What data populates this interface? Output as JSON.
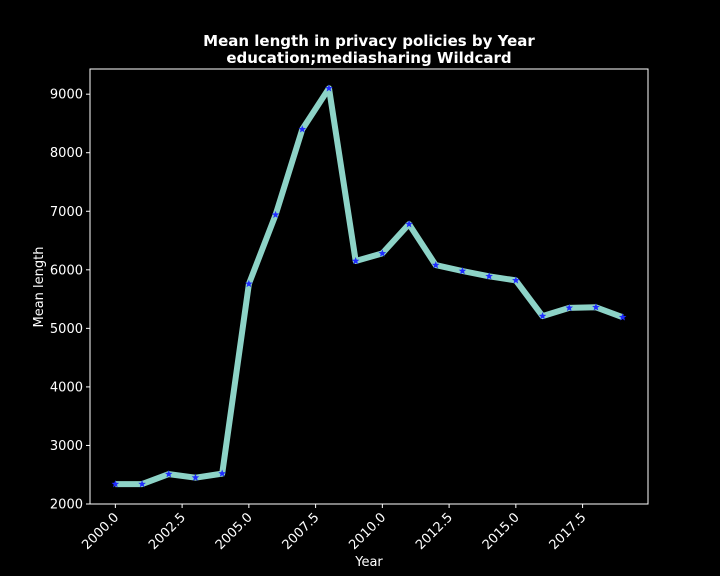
{
  "chart_data": {
    "type": "line",
    "title_line1": "Mean length in privacy policies by Year",
    "title_line2": "education;mediasharing Wildcard",
    "xlabel": "Year",
    "ylabel": "Mean length",
    "xlim": [
      1999.05,
      2019.95
    ],
    "ylim": [
      2000,
      9430
    ],
    "xticks": [
      2000.0,
      2002.5,
      2005.0,
      2007.5,
      2010.0,
      2012.5,
      2015.0,
      2017.5
    ],
    "xtick_labels": [
      "2000.0",
      "2002.5",
      "2005.0",
      "2007.5",
      "2010.0",
      "2012.5",
      "2015.0",
      "2017.5"
    ],
    "yticks": [
      2000,
      3000,
      4000,
      5000,
      6000,
      7000,
      8000,
      9000
    ],
    "ytick_labels": [
      "2000",
      "3000",
      "4000",
      "5000",
      "6000",
      "7000",
      "8000",
      "9000"
    ],
    "grid": false,
    "line_color": "#8dd3c7",
    "marker": "star",
    "marker_color": "#1f2bff",
    "series": [
      {
        "x": [
          2000,
          2001,
          2002,
          2003,
          2004,
          2005,
          2006,
          2007,
          2008,
          2009,
          2010,
          2011,
          2012,
          2013,
          2014,
          2015,
          2016,
          2017,
          2018,
          2019
        ],
        "values": [
          2340,
          2340,
          2510,
          2450,
          2520,
          5760,
          6940,
          8400,
          9100,
          6150,
          6280,
          6780,
          6080,
          5980,
          5890,
          5820,
          5210,
          5350,
          5360,
          5190
        ]
      }
    ]
  }
}
